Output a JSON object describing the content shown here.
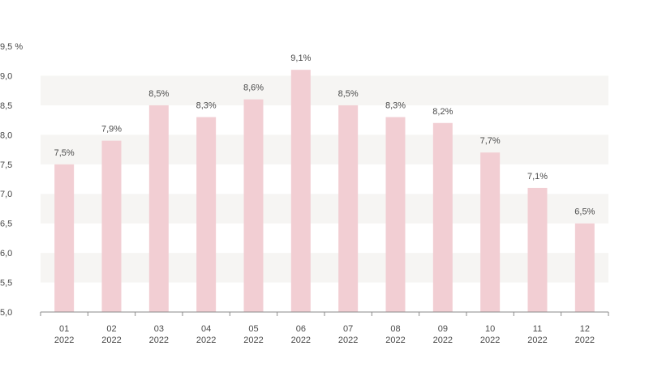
{
  "chart_data": {
    "type": "bar",
    "categories": [
      [
        "01",
        "2022"
      ],
      [
        "02",
        "2022"
      ],
      [
        "03",
        "2022"
      ],
      [
        "04",
        "2022"
      ],
      [
        "05",
        "2022"
      ],
      [
        "06",
        "2022"
      ],
      [
        "07",
        "2022"
      ],
      [
        "08",
        "2022"
      ],
      [
        "09",
        "2022"
      ],
      [
        "10",
        "2022"
      ],
      [
        "11",
        "2022"
      ],
      [
        "12",
        "2022"
      ]
    ],
    "values": [
      7.5,
      7.9,
      8.5,
      8.3,
      8.6,
      9.1,
      8.5,
      8.3,
      8.2,
      7.7,
      7.1,
      6.5
    ],
    "data_labels": [
      "7,5%",
      "7,9%",
      "8,5%",
      "8,3%",
      "8,6%",
      "9,1%",
      "8,5%",
      "8,3%",
      "8,2%",
      "7,7%",
      "7,1%",
      "6,5%"
    ],
    "y_ticks": [
      5.0,
      5.5,
      6.0,
      6.5,
      7.0,
      7.5,
      8.0,
      8.5,
      9.0,
      9.5
    ],
    "y_tick_labels": [
      "5,0",
      "5,5",
      "6,0",
      "6,5",
      "7,0",
      "7,5",
      "8,0",
      "8,5",
      "9,0",
      "9,5 %"
    ],
    "ylim": [
      5.0,
      9.5
    ],
    "title": "",
    "xlabel": "",
    "ylabel": "",
    "grid": "alternating horizontal bands",
    "legend": "none",
    "colors": {
      "bar": "#f2ced3",
      "band": "#f6f5f3",
      "axis": "#8a8a8a",
      "text": "#4a4a4a"
    }
  }
}
